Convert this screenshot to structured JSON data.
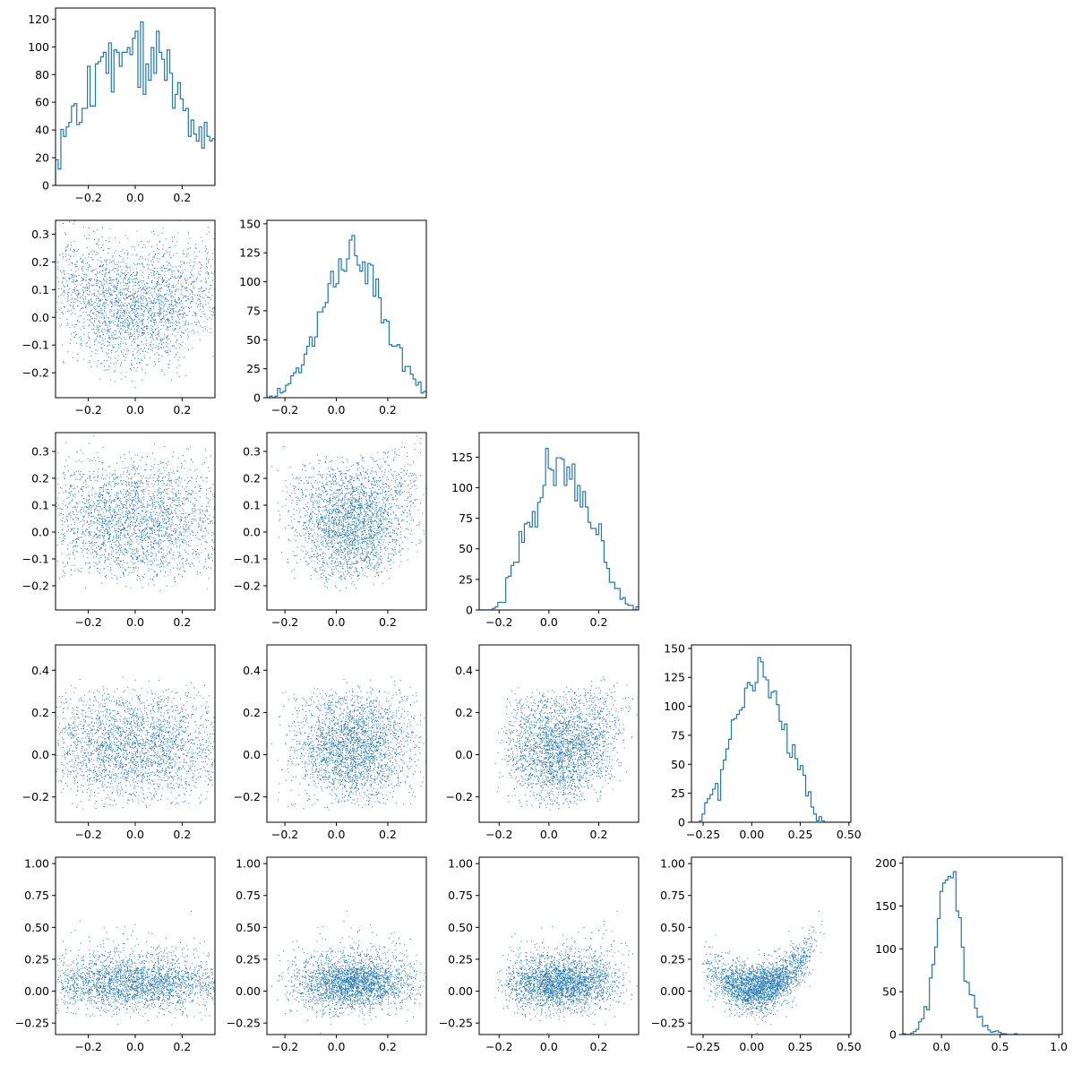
{
  "chart_data": {
    "type": "pairplot",
    "title": "",
    "marker_color": "#1f77b4",
    "n_dims": 5,
    "dims": [
      {
        "xlim": [
          -0.34,
          0.34
        ],
        "xticks": [
          -0.2,
          0.0,
          0.2
        ],
        "xtick_labels": [
          "−0.2",
          "0.0",
          "0.2"
        ],
        "center": 0.0,
        "spread": 0.3,
        "skew": 0,
        "hist_yticks": [
          0,
          20,
          40,
          60,
          80,
          100,
          120
        ],
        "hist_ylim": [
          0,
          128
        ],
        "hist_peak": 118
      },
      {
        "xlim": [
          -0.27,
          0.35
        ],
        "xticks": [
          -0.2,
          0.0,
          0.2
        ],
        "xtick_labels": [
          "−0.2",
          "0.0",
          "0.2"
        ],
        "center": 0.07,
        "spread": 0.3,
        "skew": 0,
        "hist_yticks": [
          0,
          25,
          50,
          75,
          100,
          125,
          150
        ],
        "hist_ylim": [
          0,
          153
        ],
        "hist_peak": 140
      },
      {
        "xlim": [
          -0.28,
          0.36
        ],
        "xticks": [
          -0.2,
          0.0,
          0.2
        ],
        "xtick_labels": [
          "−0.2",
          "0.0",
          "0.2"
        ],
        "center": 0.08,
        "spread": 0.3,
        "skew": 0,
        "hist_yticks": [
          0,
          25,
          50,
          75,
          100,
          125
        ],
        "hist_ylim": [
          0,
          145
        ],
        "hist_peak": 132
      },
      {
        "xlim": [
          -0.31,
          0.51
        ],
        "xticks": [
          -0.25,
          0.0,
          0.25,
          0.5
        ],
        "xtick_labels": [
          "−0.25",
          "0.00",
          "0.25",
          "0.50"
        ],
        "center": 0.1,
        "spread": 0.38,
        "skew": 0,
        "hist_yticks": [
          0,
          25,
          50,
          75,
          100,
          125,
          150
        ],
        "hist_ylim": [
          0,
          153
        ],
        "hist_peak": 142
      },
      {
        "xlim": [
          -0.33,
          1.03
        ],
        "xticks": [
          0.0,
          0.5,
          1.0
        ],
        "xtick_labels": [
          "0.0",
          "0.5",
          "1.0"
        ],
        "center": 0.1,
        "spread": 0.18,
        "skew": 1,
        "hist_yticks": [
          0,
          50,
          100,
          150,
          200
        ],
        "hist_ylim": [
          0,
          207
        ],
        "hist_peak": 190
      }
    ],
    "scatter_yticks": {
      "1": {
        "ticks": [
          -0.2,
          -0.1,
          0.0,
          0.1,
          0.2,
          0.3
        ],
        "labels": [
          "−0.2",
          "−0.1",
          "0.0",
          "0.1",
          "0.2",
          "0.3"
        ],
        "ylim": [
          -0.29,
          0.35
        ]
      },
      "2": {
        "ticks": [
          -0.2,
          -0.1,
          0.0,
          0.1,
          0.2,
          0.3
        ],
        "labels": [
          "−0.2",
          "−0.1",
          "0.0",
          "0.1",
          "0.2",
          "0.3"
        ],
        "ylim": [
          -0.29,
          0.37
        ]
      },
      "3": {
        "ticks": [
          -0.2,
          0.0,
          0.2,
          0.4
        ],
        "labels": [
          "−0.2",
          "0.0",
          "0.2",
          "0.4"
        ],
        "ylim": [
          -0.32,
          0.52
        ]
      },
      "4": {
        "ticks": [
          -0.25,
          0.0,
          0.25,
          0.5,
          0.75,
          1.0
        ],
        "labels": [
          "−0.25",
          "0.00",
          "0.25",
          "0.50",
          "0.75",
          "1.00"
        ],
        "ylim": [
          -0.34,
          1.05
        ]
      }
    }
  }
}
